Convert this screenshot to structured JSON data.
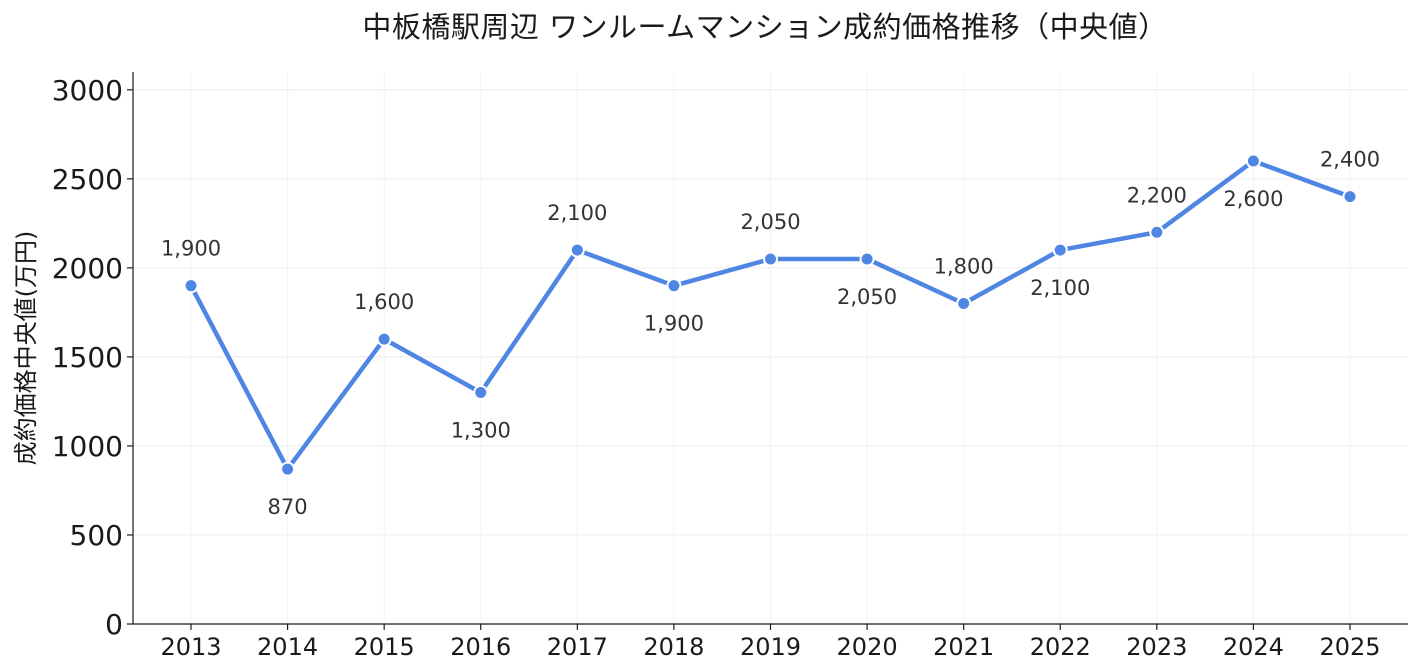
{
  "chart_data": {
    "type": "line",
    "title": "中板橋駅周辺 ワンルームマンション成約価格推移（中央値）",
    "xlabel": "",
    "ylabel": "成約価格中央値(万円)",
    "x": [
      "2013",
      "2014",
      "2015",
      "2016",
      "2017",
      "2018",
      "2019",
      "2020",
      "2021",
      "2022",
      "2023",
      "2024",
      "2025"
    ],
    "series": [
      {
        "values": [
          1900,
          870,
          1600,
          1300,
          2100,
          1900,
          2050,
          2050,
          1800,
          2100,
          2200,
          2600,
          2400
        ]
      }
    ],
    "data_labels": [
      "1,900",
      "870",
      "1,600",
      "1,300",
      "2,100",
      "1,900",
      "2,050",
      "2,050",
      "1,800",
      "2,100",
      "2,200",
      "2,600",
      "2,400"
    ],
    "label_positions": [
      "above",
      "below",
      "above",
      "below",
      "above",
      "below",
      "above",
      "below",
      "above",
      "below",
      "above",
      "below",
      "above"
    ],
    "yticks": [
      0,
      500,
      1000,
      1500,
      2000,
      2500,
      3000
    ],
    "ylim": [
      0,
      3100
    ],
    "grid": true,
    "legend": "none",
    "colors": {
      "line": "#4f86e3",
      "marker_fill": "#4f86e3",
      "marker_edge": "#ffffff",
      "grid": "#ececec",
      "axis": "#1a1a1a"
    }
  }
}
